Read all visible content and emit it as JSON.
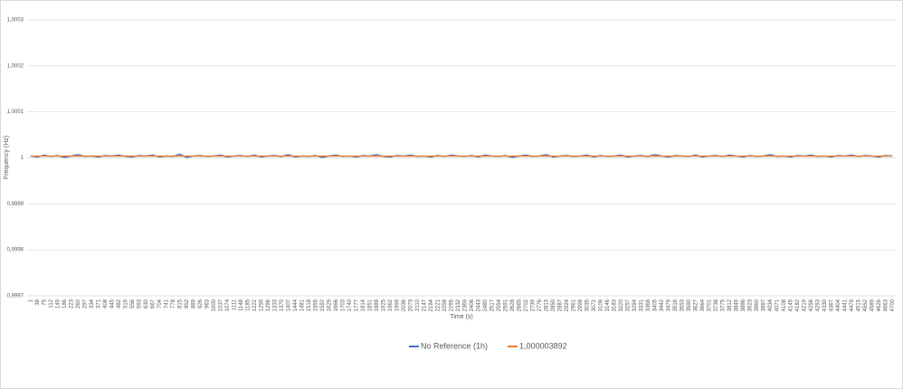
{
  "chart_data": {
    "type": "line",
    "x_label": "Time (s)",
    "y_label": "Frequency (Hz)",
    "categories": [
      1,
      38,
      75,
      112,
      149,
      186,
      223,
      260,
      297,
      334,
      371,
      408,
      445,
      482,
      519,
      556,
      593,
      630,
      667,
      704,
      741,
      778,
      815,
      852,
      889,
      926,
      963,
      1000,
      1037,
      1074,
      1111,
      1148,
      1185,
      1222,
      1259,
      1296,
      1333,
      1370,
      1407,
      1444,
      1481,
      1518,
      1555,
      1592,
      1629,
      1666,
      1703,
      1740,
      1777,
      1814,
      1851,
      1888,
      1925,
      1962,
      1999,
      2036,
      2073,
      2110,
      2147,
      2184,
      2221,
      2258,
      2295,
      2332,
      2369,
      2406,
      2443,
      2480,
      2517,
      2554,
      2591,
      2628,
      2665,
      2702,
      2739,
      2776,
      2813,
      2850,
      2887,
      2924,
      2961,
      2998,
      3035,
      3072,
      3109,
      3146,
      3183,
      3220,
      3257,
      3294,
      3331,
      3368,
      3405,
      3442,
      3479,
      3516,
      3553,
      3590,
      3627,
      3664,
      3701,
      3738,
      3775,
      3812,
      3849,
      3886,
      3923,
      3960,
      3997,
      4034,
      4071,
      4108,
      4145,
      4182,
      4219,
      4256,
      4293,
      4330,
      4367,
      4404,
      4441,
      4478,
      4515,
      4552,
      4589,
      4626,
      4663,
      4700
    ],
    "series": [
      {
        "name": "No Reference (1h)",
        "color": "#4472c4",
        "values": [
          1.000004,
          1.000002,
          1.000006,
          1.000003,
          1.000005,
          1.000001,
          1.000004,
          1.000007,
          1.000003,
          1.000004,
          1.000002,
          1.000005,
          1.000004,
          1.000006,
          1.000003,
          1.000002,
          1.000005,
          1.000004,
          1.000006,
          1.000002,
          1.000004,
          1.000003,
          1.000008,
          1.000001,
          1.000004,
          1.000005,
          1.000003,
          1.000004,
          1.000006,
          1.000002,
          1.000004,
          1.000005,
          1.000003,
          1.000006,
          1.000002,
          1.000004,
          1.000005,
          1.000003,
          1.000007,
          1.000002,
          1.000004,
          1.000003,
          1.000005,
          1.000001,
          1.000004,
          1.000006,
          1.000003,
          1.000004,
          1.000002,
          1.000005,
          1.000004,
          1.000007,
          1.000003,
          1.000002,
          1.000005,
          1.000004,
          1.000006,
          1.000003,
          1.000004,
          1.000002,
          1.000005,
          1.000003,
          1.000006,
          1.000004,
          1.000003,
          1.000005,
          1.000002,
          1.000006,
          1.000004,
          1.000003,
          1.000005,
          1.000001,
          1.000004,
          1.000006,
          1.000003,
          1.000004,
          1.000007,
          1.000002,
          1.000004,
          1.000005,
          1.000003,
          1.000004,
          1.000006,
          1.000002,
          1.000005,
          1.000003,
          1.000004,
          1.000006,
          1.000002,
          1.000004,
          1.000005,
          1.000003,
          1.000007,
          1.000004,
          1.000002,
          1.000005,
          1.000004,
          1.000003,
          1.000006,
          1.000002,
          1.000004,
          1.000005,
          1.000003,
          1.000006,
          1.000004,
          1.000002,
          1.000005,
          1.000003,
          1.000004,
          1.000007,
          1.000003,
          1.000004,
          1.000002,
          1.000005,
          1.000004,
          1.000006,
          1.000003,
          1.000004,
          1.000002,
          1.000005,
          1.000004,
          1.000006,
          1.000003,
          1.000005,
          1.000004,
          1.000002,
          1.000005,
          1.000004
        ]
      },
      {
        "name": "1,000003892",
        "color": "#ed7d31",
        "values": [
          1.000003892,
          1.000003892,
          1.000003892,
          1.000003892,
          1.000003892,
          1.000003892,
          1.000003892,
          1.000003892,
          1.000003892,
          1.000003892,
          1.000003892,
          1.000003892,
          1.000003892,
          1.000003892,
          1.000003892,
          1.000003892,
          1.000003892,
          1.000003892,
          1.000003892,
          1.000003892,
          1.000003892,
          1.000003892,
          1.000003892,
          1.000003892,
          1.000003892,
          1.000003892,
          1.000003892,
          1.000003892,
          1.000003892,
          1.000003892,
          1.000003892,
          1.000003892,
          1.000003892,
          1.000003892,
          1.000003892,
          1.000003892,
          1.000003892,
          1.000003892,
          1.000003892,
          1.000003892,
          1.000003892,
          1.000003892,
          1.000003892,
          1.000003892,
          1.000003892,
          1.000003892,
          1.000003892,
          1.000003892,
          1.000003892,
          1.000003892,
          1.000003892,
          1.000003892,
          1.000003892,
          1.000003892,
          1.000003892,
          1.000003892,
          1.000003892,
          1.000003892,
          1.000003892,
          1.000003892,
          1.000003892,
          1.000003892,
          1.000003892,
          1.000003892,
          1.000003892,
          1.000003892,
          1.000003892,
          1.000003892,
          1.000003892,
          1.000003892,
          1.000003892,
          1.000003892,
          1.000003892,
          1.000003892,
          1.000003892,
          1.000003892,
          1.000003892,
          1.000003892,
          1.000003892,
          1.000003892,
          1.000003892,
          1.000003892,
          1.000003892,
          1.000003892,
          1.000003892,
          1.000003892,
          1.000003892,
          1.000003892,
          1.000003892,
          1.000003892,
          1.000003892,
          1.000003892,
          1.000003892,
          1.000003892,
          1.000003892,
          1.000003892,
          1.000003892,
          1.000003892,
          1.000003892,
          1.000003892,
          1.000003892,
          1.000003892,
          1.000003892,
          1.000003892,
          1.000003892,
          1.000003892,
          1.000003892,
          1.000003892,
          1.000003892,
          1.000003892,
          1.000003892,
          1.000003892,
          1.000003892,
          1.000003892,
          1.000003892,
          1.000003892,
          1.000003892,
          1.000003892,
          1.000003892,
          1.000003892,
          1.000003892,
          1.000003892,
          1.000003892,
          1.000003892,
          1.000003892,
          1.000003892,
          1.000003892,
          1.000003892
        ]
      }
    ],
    "ylim": [
      0.9997,
      1.0003
    ],
    "yticks": [
      {
        "value": 0.9997,
        "label": "0,9997"
      },
      {
        "value": 0.9998,
        "label": "0,9998"
      },
      {
        "value": 0.9999,
        "label": "0,9999"
      },
      1,
      {
        "value": 1.0001,
        "label": "1,0001"
      },
      {
        "value": 1.0002,
        "label": "1,0002"
      },
      {
        "value": 1.0003,
        "label": "1,0003"
      }
    ],
    "grid": true,
    "legend": "bottom"
  }
}
